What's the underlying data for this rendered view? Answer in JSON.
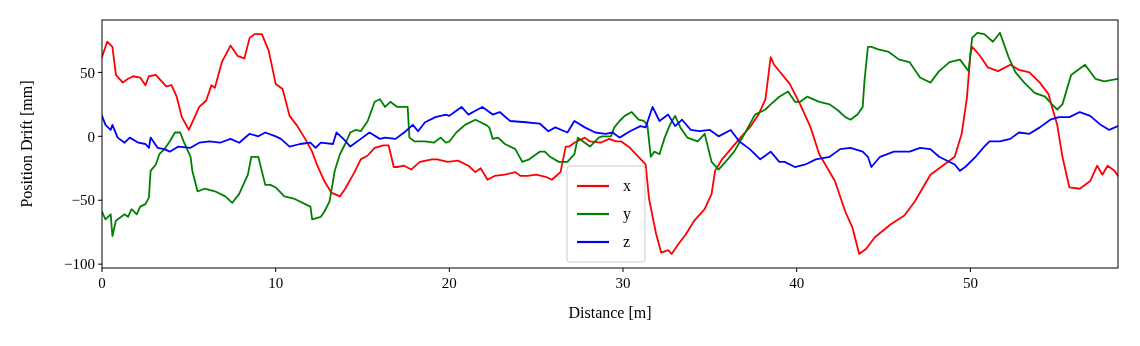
{
  "chart_data": {
    "type": "line",
    "xlabel": "Distance [m]",
    "ylabel": "Position Drift [mm]",
    "xlim": [
      0,
      58.5
    ],
    "ylim": [
      -103,
      91
    ],
    "xticks": [
      0,
      10,
      20,
      30,
      40,
      50
    ],
    "yticks": [
      {
        "value": -100,
        "label": "−100"
      },
      {
        "value": -50,
        "label": "−50"
      },
      0,
      50
    ],
    "grid": false,
    "legend": "bottom",
    "line_style": "solid",
    "marker": "none",
    "series": [
      {
        "name": "x",
        "color": "#ff0000",
        "x": [
          0,
          0.3,
          0.6,
          0.8,
          1.2,
          1.5,
          1.8,
          2.2,
          2.5,
          2.7,
          3.1,
          3.3,
          3.7,
          4.0,
          4.3,
          4.6,
          5.0,
          5.4,
          5.6,
          6.0,
          6.3,
          6.5,
          6.9,
          7.4,
          7.8,
          8.2,
          8.5,
          8.8,
          9.2,
          9.6,
          10.0,
          10.4,
          10.8,
          11.2,
          11.7,
          12.1,
          12.4,
          12.8,
          13.2,
          13.7,
          14.0,
          14.5,
          14.9,
          15.3,
          15.7,
          16.2,
          16.5,
          16.8,
          17.0,
          17.4,
          17.8,
          18.3,
          19.0,
          19.3,
          19.9,
          20.5,
          21.1,
          21.5,
          21.8,
          22.2,
          22.6,
          23.2,
          23.8,
          24.1,
          24.5,
          25.0,
          25.6,
          25.9,
          26.4,
          26.7,
          26.9,
          27.2,
          27.8,
          28.1,
          28.7,
          29.2,
          29.6,
          29.9,
          30.4,
          31.3,
          31.5,
          31.9,
          32.2,
          32.6,
          32.8,
          33.2,
          33.6,
          34.1,
          34.7,
          35.1,
          35.3,
          35.7,
          36.2,
          36.7,
          37.3,
          37.8,
          38.2,
          38.5,
          38.7,
          39.6,
          40.2,
          40.8,
          41.3,
          42.2,
          42.8,
          43.2,
          43.6,
          44.0,
          44.5,
          45.4,
          46.2,
          46.8,
          47.7,
          48.5,
          49.1,
          49.5,
          49.8,
          50.0,
          50.1,
          50.5,
          51.0,
          51.6,
          52.3,
          52.8,
          53.4,
          54.0,
          54.5,
          54.7,
          55.0,
          55.3,
          55.7,
          56.3,
          56.9,
          57.3,
          57.6,
          57.9,
          58.3,
          58.5
        ],
        "values": [
          62,
          74,
          70,
          48,
          42,
          45,
          47,
          46,
          40,
          47,
          48,
          45,
          39,
          40,
          31,
          15,
          5,
          17,
          23,
          28,
          40,
          38,
          58,
          71,
          63,
          61,
          77,
          80,
          80,
          67,
          41,
          37,
          16,
          9,
          -2,
          -12,
          -23,
          -35,
          -44,
          -47,
          -41,
          -29,
          -18,
          -15,
          -9,
          -7,
          -7,
          -24,
          -24,
          -23,
          -26,
          -20,
          -18,
          -18,
          -20,
          -19,
          -23,
          -28,
          -25,
          -34,
          -31,
          -30,
          -28,
          -31,
          -31,
          -30,
          -32,
          -34,
          -28,
          -8,
          -8,
          -5,
          -1,
          -4,
          -5,
          -2,
          -4,
          -4,
          -9,
          -22,
          -49,
          -76,
          -91,
          -89,
          -92,
          -84,
          -77,
          -66,
          -57,
          -45,
          -27,
          -18,
          -10,
          -2,
          7,
          17,
          29,
          62,
          56,
          41,
          25,
          7,
          -14,
          -35,
          -59,
          -71,
          -92,
          -88,
          -79,
          -69,
          -62,
          -51,
          -30,
          -22,
          -16,
          2,
          30,
          64,
          70,
          64,
          54,
          51,
          56,
          52,
          50,
          42,
          33,
          23,
          9,
          -16,
          -40,
          -41,
          -35,
          -23,
          -30,
          -23,
          -27,
          -31
        ]
      },
      {
        "name": "y",
        "color": "#008000",
        "x": [
          0,
          0.2,
          0.5,
          0.6,
          0.8,
          1.3,
          1.5,
          1.7,
          2.0,
          2.2,
          2.5,
          2.7,
          2.8,
          3.1,
          3.3,
          3.6,
          3.9,
          4.2,
          4.5,
          4.7,
          5.1,
          5.2,
          5.5,
          5.9,
          6.5,
          7.1,
          7.5,
          7.9,
          8.4,
          8.6,
          9.0,
          9.4,
          9.7,
          10.0,
          10.5,
          11.1,
          11.7,
          12.0,
          12.1,
          12.6,
          12.8,
          13.1,
          13.4,
          13.7,
          14.0,
          14.3,
          14.6,
          14.9,
          15.3,
          15.7,
          16.0,
          16.3,
          16.6,
          17.0,
          17.6,
          17.7,
          18.0,
          18.6,
          19.1,
          19.5,
          19.8,
          20.0,
          20.4,
          20.9,
          21.5,
          22.1,
          22.3,
          22.5,
          22.8,
          23.2,
          23.8,
          24.2,
          24.6,
          25.2,
          25.5,
          25.8,
          26.3,
          26.8,
          27.2,
          27.4,
          27.7,
          28.1,
          28.6,
          28.8,
          29.3,
          29.5,
          29.8,
          30.1,
          30.5,
          30.9,
          31.2,
          31.4,
          31.6,
          31.8,
          32.1,
          32.4,
          32.7,
          33.0,
          33.3,
          33.7,
          34.3,
          34.7,
          35.1,
          35.5,
          35.9,
          36.4,
          37.0,
          37.6,
          38.2,
          38.5,
          39.0,
          39.5,
          39.9,
          40.2,
          40.6,
          41.3,
          41.9,
          42.4,
          42.8,
          43.1,
          43.5,
          43.8,
          43.9,
          44.1,
          44.3,
          44.7,
          45.3,
          45.9,
          46.5,
          47.1,
          47.7,
          48.2,
          48.8,
          49.4,
          49.9,
          50.1,
          50.4,
          50.8,
          51.3,
          51.7,
          52.2,
          52.6,
          53.1,
          53.7,
          54.3,
          54.7,
          55.0,
          55.3,
          55.8,
          56.6,
          57.2,
          57.7,
          58.5
        ],
        "values": [
          -59,
          -65,
          -61,
          -78,
          -66,
          -61,
          -63,
          -57,
          -61,
          -55,
          -53,
          -48,
          -27,
          -22,
          -14,
          -10,
          -4,
          3,
          3,
          -4,
          -16,
          -27,
          -43,
          -41,
          -43,
          -47,
          -52,
          -45,
          -30,
          -16,
          -16,
          -38,
          -38,
          -40,
          -47,
          -49,
          -53,
          -55,
          -65,
          -63,
          -59,
          -51,
          -27,
          -14,
          -6,
          3,
          5,
          4,
          12,
          27,
          29,
          23,
          27,
          23,
          23,
          -1,
          -4,
          -4,
          -5,
          -1,
          -5,
          -4,
          3,
          9,
          13,
          9,
          7,
          -2,
          -1,
          -6,
          -10,
          -20,
          -18,
          -12,
          -12,
          -16,
          -20,
          -20,
          -14,
          -1,
          -4,
          -8,
          -1,
          0,
          0,
          7,
          12,
          16,
          19,
          13,
          12,
          9,
          -16,
          -12,
          -14,
          -1,
          9,
          16,
          7,
          -1,
          -4,
          2,
          -20,
          -26,
          -20,
          -12,
          2,
          17,
          21,
          25,
          31,
          35,
          27,
          27,
          31,
          27,
          25,
          20,
          15,
          13,
          17,
          23,
          43,
          70,
          70,
          68,
          66,
          60,
          58,
          46,
          42,
          51,
          58,
          60,
          51,
          77,
          81,
          80,
          74,
          81,
          62,
          50,
          42,
          34,
          31,
          25,
          21,
          25,
          48,
          56,
          45,
          43,
          45
        ]
      },
      {
        "name": "z",
        "color": "#0000ff",
        "x": [
          0,
          0.2,
          0.5,
          0.6,
          0.9,
          1.3,
          1.6,
          2.1,
          2.5,
          2.7,
          2.8,
          3.2,
          3.6,
          3.9,
          4.4,
          5.1,
          5.6,
          6.2,
          6.8,
          7.4,
          7.9,
          8.5,
          9.0,
          9.4,
          10.0,
          10.3,
          10.8,
          11.4,
          12.0,
          12.3,
          12.6,
          13.3,
          13.5,
          13.9,
          14.3,
          14.9,
          15.4,
          16.0,
          16.3,
          16.9,
          17.4,
          17.9,
          18.2,
          18.6,
          19.2,
          19.8,
          20.0,
          20.3,
          20.7,
          21.1,
          21.5,
          21.9,
          22.5,
          22.9,
          23.5,
          24.4,
          25.2,
          25.7,
          26.1,
          26.8,
          27.2,
          27.8,
          28.4,
          29.0,
          29.4,
          29.8,
          30.4,
          31.0,
          31.3,
          31.7,
          32.1,
          32.6,
          33.0,
          33.4,
          33.9,
          34.4,
          35.0,
          35.5,
          36.2,
          36.7,
          37.3,
          37.9,
          38.5,
          39.0,
          39.3,
          39.9,
          40.5,
          41.1,
          41.9,
          42.5,
          43.1,
          43.8,
          44.1,
          44.3,
          44.8,
          45.6,
          46.5,
          47.1,
          47.7,
          48.2,
          49.1,
          49.4,
          49.7,
          50.3,
          50.8,
          51.1,
          51.7,
          52.3,
          52.8,
          53.4,
          54.0,
          54.6,
          55.1,
          55.7,
          56.3,
          56.9,
          57.5,
          58.0,
          58.5
        ],
        "values": [
          16,
          9,
          5,
          9,
          -1,
          -5,
          -1,
          -5,
          -6,
          -9,
          -1,
          -9,
          -10,
          -12,
          -8,
          -9,
          -5,
          -4,
          -5,
          -2,
          -5,
          2,
          0,
          3,
          0,
          -2,
          -8,
          -6,
          -5,
          -9,
          -5,
          -6,
          3,
          -2,
          -8,
          -2,
          3,
          -2,
          -1,
          -2,
          3,
          9,
          4,
          11,
          15,
          17,
          16,
          19,
          23,
          17,
          20,
          23,
          17,
          19,
          12,
          11,
          10,
          4,
          7,
          3,
          12,
          7,
          3,
          2,
          3,
          -1,
          4,
          8,
          7,
          23,
          12,
          17,
          8,
          13,
          5,
          4,
          5,
          0,
          5,
          -4,
          -10,
          -18,
          -12,
          -20,
          -20,
          -24,
          -22,
          -18,
          -16,
          -10,
          -9,
          -12,
          -16,
          -24,
          -16,
          -12,
          -12,
          -9,
          -10,
          -16,
          -22,
          -27,
          -24,
          -16,
          -8,
          -4,
          -4,
          -2,
          3,
          2,
          7,
          13,
          15,
          15,
          19,
          16,
          9,
          5,
          8
        ]
      }
    ]
  }
}
